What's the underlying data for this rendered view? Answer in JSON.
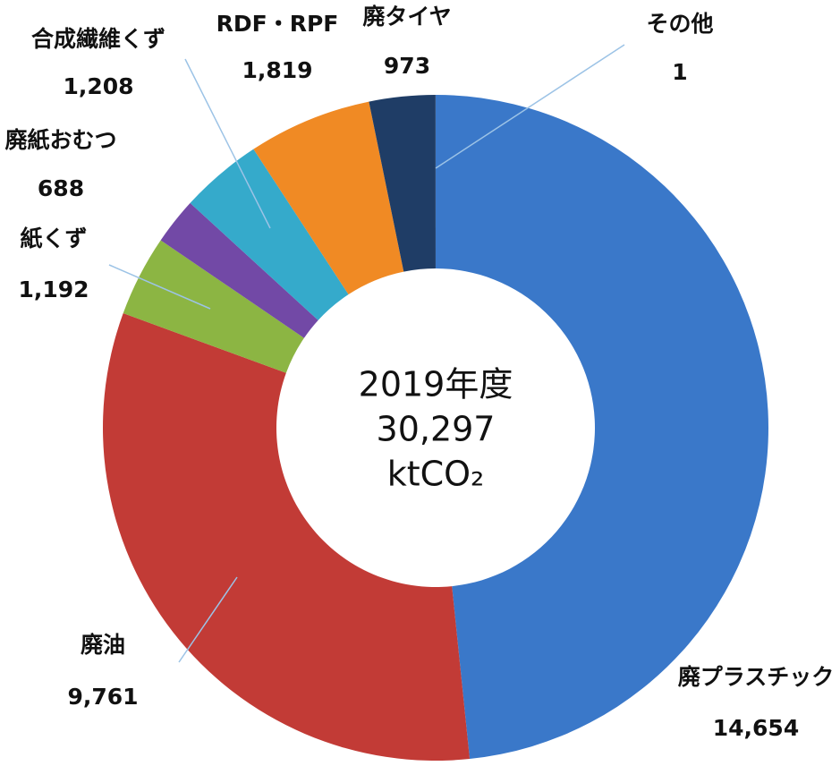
{
  "chart_data": {
    "type": "donut",
    "categories": [
      "廃プラスチック",
      "廃油",
      "紙くず",
      "廃紙おむつ",
      "合成繊維くず",
      "RDF・RPF",
      "廃タイヤ",
      "その他"
    ],
    "values": [
      14654,
      9761,
      1192,
      688,
      1208,
      1819,
      973,
      1
    ],
    "value_labels": [
      "14,654",
      "9,761",
      "1,192",
      "688",
      "1,208",
      "1,819",
      "973",
      "1"
    ],
    "colors": [
      "#3a78c9",
      "#c23b36",
      "#8cb543",
      "#7249a6",
      "#35aacb",
      "#f08a24",
      "#1f3d66",
      "#a0a0a0"
    ],
    "center_text": [
      "2019年度",
      "30,297",
      "ktCO₂"
    ]
  }
}
